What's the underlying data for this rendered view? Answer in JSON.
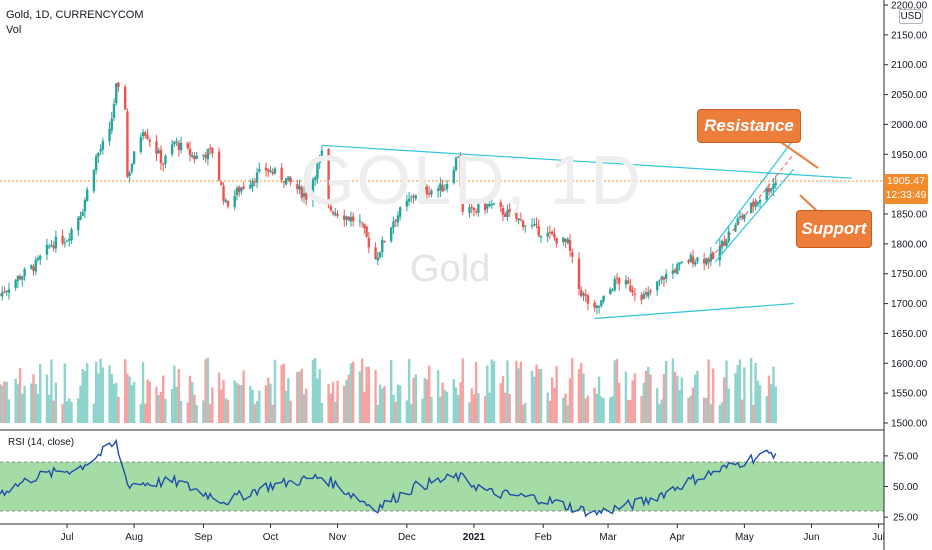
{
  "header": {
    "title": "Gold, 1D, CURRENCYCOM",
    "volume_label": "Vol",
    "currency_badge": "USD",
    "watermark_symbol": "GOLD, 1D",
    "watermark_name": "Gold"
  },
  "current_price": {
    "value": "1905.47",
    "countdown": "12:33:49",
    "color": "#f28b2c"
  },
  "annotations": {
    "resistance_label": "Resistance",
    "support_label": "Support",
    "color": "#ed7d3b"
  },
  "rsi": {
    "title": "RSI (14, close)"
  },
  "colors": {
    "up": "#26a69a",
    "down": "#ef5350",
    "trendline": "#2ec5d9",
    "rsi_line": "#1e4fa8",
    "rsi_band": "#a5dba5"
  },
  "chart_data": {
    "type": "candlestick",
    "price_axis": {
      "ticks": [
        1500,
        1550,
        1600,
        1650,
        1700,
        1750,
        1800,
        1850,
        1900,
        1950,
        2000,
        2050,
        2100,
        2150,
        2200
      ],
      "labels": [
        "1500.00",
        "1550.00",
        "1600.00",
        "1650.00",
        "1700.00",
        "1750.00",
        "1800.00",
        "1850.00",
        "1900.00",
        "1950.00",
        "2000.00",
        "2050.00",
        "2100.00",
        "2150.00",
        "2200.00"
      ]
    },
    "rsi_axis": {
      "ticks": [
        25,
        50,
        75
      ],
      "labels": [
        "25.00",
        "50.00",
        "75.00"
      ],
      "band": [
        30,
        70
      ]
    },
    "time_axis": {
      "labels": [
        "Jul",
        "Aug",
        "Sep",
        "Oct",
        "Nov",
        "Dec",
        "2021",
        "Feb",
        "Mar",
        "Apr",
        "May",
        "Jun",
        "Jul"
      ]
    },
    "price_path": [
      [
        "2020-06-15",
        1715
      ],
      [
        "2020-06-22",
        1740
      ],
      [
        "2020-07-01",
        1765
      ],
      [
        "2020-07-08",
        1800
      ],
      [
        "2020-07-15",
        1810
      ],
      [
        "2020-07-22",
        1860
      ],
      [
        "2020-07-28",
        1945
      ],
      [
        "2020-08-03",
        1985
      ],
      [
        "2020-08-06",
        2062
      ],
      [
        "2020-08-10",
        2030
      ],
      [
        "2020-08-11",
        1912
      ],
      [
        "2020-08-18",
        1995
      ],
      [
        "2020-08-27",
        1935
      ],
      [
        "2020-09-01",
        1970
      ],
      [
        "2020-09-10",
        1945
      ],
      [
        "2020-09-18",
        1955
      ],
      [
        "2020-09-24",
        1865
      ],
      [
        "2020-10-01",
        1895
      ],
      [
        "2020-10-12",
        1925
      ],
      [
        "2020-10-20",
        1910
      ],
      [
        "2020-10-30",
        1880
      ],
      [
        "2020-11-06",
        1950
      ],
      [
        "2020-11-09",
        1860
      ],
      [
        "2020-11-23",
        1835
      ],
      [
        "2020-11-30",
        1775
      ],
      [
        "2020-12-08",
        1840
      ],
      [
        "2020-12-18",
        1885
      ],
      [
        "2020-12-31",
        1895
      ],
      [
        "2021-01-06",
        1950
      ],
      [
        "2021-01-08",
        1850
      ],
      [
        "2021-01-20",
        1865
      ],
      [
        "2021-02-02",
        1840
      ],
      [
        "2021-02-12",
        1820
      ],
      [
        "2021-02-24",
        1800
      ],
      [
        "2021-03-01",
        1725
      ],
      [
        "2021-03-08",
        1685
      ],
      [
        "2021-03-18",
        1740
      ],
      [
        "2021-03-31",
        1710
      ],
      [
        "2021-04-08",
        1745
      ],
      [
        "2021-04-20",
        1775
      ],
      [
        "2021-04-30",
        1775
      ],
      [
        "2021-05-10",
        1835
      ],
      [
        "2021-05-19",
        1870
      ],
      [
        "2021-05-28",
        1905
      ]
    ],
    "volume": {
      "range": [
        1500,
        1650
      ],
      "note": "bars in price pane, mirrored red/teal"
    },
    "rsi_path": [
      [
        "2020-06-15",
        45
      ],
      [
        "2020-07-01",
        58
      ],
      [
        "2020-07-20",
        65
      ],
      [
        "2020-08-06",
        85
      ],
      [
        "2020-08-11",
        52
      ],
      [
        "2020-09-01",
        54
      ],
      [
        "2020-09-24",
        38
      ],
      [
        "2020-10-12",
        50
      ],
      [
        "2020-11-06",
        58
      ],
      [
        "2020-11-30",
        32
      ],
      [
        "2020-12-18",
        50
      ],
      [
        "2021-01-06",
        58
      ],
      [
        "2021-01-20",
        45
      ],
      [
        "2021-02-12",
        40
      ],
      [
        "2021-03-08",
        28
      ],
      [
        "2021-03-31",
        38
      ],
      [
        "2021-04-20",
        55
      ],
      [
        "2021-05-10",
        68
      ],
      [
        "2021-05-19",
        74
      ],
      [
        "2021-05-28",
        78
      ]
    ],
    "trendlines": [
      {
        "name": "resistance",
        "from": [
          "2020-11-06",
          1965
        ],
        "to": [
          "2021-07-01",
          1910
        ]
      },
      {
        "name": "support",
        "from": [
          "2021-03-08",
          1675
        ],
        "to": [
          "2021-06-05",
          1700
        ]
      },
      {
        "name": "channel-upper",
        "from": [
          "2021-05-01",
          1800
        ],
        "to": [
          "2021-06-05",
          1975
        ]
      },
      {
        "name": "channel-lower",
        "from": [
          "2021-05-01",
          1770
        ],
        "to": [
          "2021-06-05",
          1925
        ]
      }
    ],
    "grid": false,
    "legend": "top-left"
  }
}
